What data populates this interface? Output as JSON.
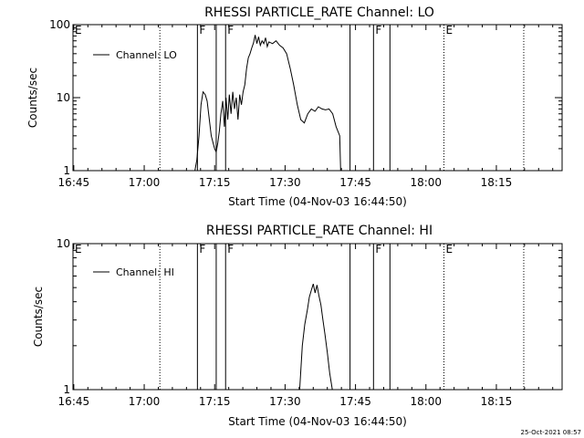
{
  "footer": {
    "timestamp": "25-Oct-2021 08:57"
  },
  "chart_data": [
    {
      "type": "line",
      "title": "RHESSI PARTICLE_RATE Channel: LO",
      "xlabel": "Start Time (04-Nov-03 16:44:50)",
      "ylabel": "Counts/sec",
      "y_scale": "log",
      "ylim": [
        1,
        100
      ],
      "y_ticks": [
        {
          "value": 1,
          "label": "1"
        },
        {
          "value": 10,
          "label": "10"
        },
        {
          "value": 100,
          "label": "100"
        }
      ],
      "xlim": [
        "16:44:50",
        "18:29:00"
      ],
      "x_ticks": [
        "16:45",
        "17:00",
        "17:15",
        "17:30",
        "17:45",
        "18:00",
        "18:15"
      ],
      "legend": {
        "position": "top-left",
        "entries": [
          "Channel: LO"
        ]
      },
      "series": [
        {
          "name": "Channel: LO",
          "x": [
            "17:10:48",
            "17:11:12",
            "17:11:40",
            "17:12:06",
            "17:12:32",
            "17:13:00",
            "17:13:24",
            "17:13:52",
            "17:14:16",
            "17:14:44",
            "17:15:00",
            "17:15:20",
            "17:15:40",
            "17:16:00",
            "17:16:20",
            "17:16:44",
            "17:17:04",
            "17:17:26",
            "17:17:48",
            "17:18:08",
            "17:18:30",
            "17:18:52",
            "17:19:14",
            "17:19:36",
            "17:19:58",
            "17:20:20",
            "17:20:42",
            "17:21:04",
            "17:21:26",
            "17:21:48",
            "17:22:10",
            "17:22:32",
            "17:22:54",
            "17:23:16",
            "17:23:38",
            "17:24:00",
            "17:24:22",
            "17:24:44",
            "17:25:06",
            "17:25:28",
            "17:25:50",
            "17:26:12",
            "17:26:34",
            "17:27:20",
            "17:28:04",
            "17:28:50",
            "17:29:34",
            "17:30:20",
            "17:31:06",
            "17:31:50",
            "17:32:36",
            "17:33:20",
            "17:34:06",
            "17:34:50",
            "17:35:36",
            "17:36:22",
            "17:37:06",
            "17:37:52",
            "17:38:36",
            "17:39:22",
            "17:40:08",
            "17:40:52",
            "17:41:38",
            "17:41:50"
          ],
          "values": [
            1,
            1.4,
            3,
            8,
            12,
            11,
            9,
            5,
            3,
            2.3,
            2.0,
            1.8,
            2.4,
            3.5,
            6,
            9,
            4,
            10,
            5,
            11,
            6,
            12,
            7,
            10,
            5,
            11,
            8,
            12,
            15,
            25,
            35,
            40,
            48,
            56,
            72,
            55,
            68,
            52,
            60,
            55,
            66,
            50,
            58,
            55,
            60,
            52,
            48,
            40,
            25,
            15,
            8,
            5,
            4.5,
            6,
            7,
            6.5,
            7.5,
            7,
            6.8,
            7,
            6,
            4,
            3,
            1
          ]
        }
      ],
      "vertical_markers": [
        {
          "time": "17:03:20",
          "style": "dotted",
          "label": ""
        },
        {
          "time": "17:11:20",
          "style": "solid",
          "label": "F"
        },
        {
          "time": "17:15:20",
          "style": "solid",
          "label": ""
        },
        {
          "time": "17:17:20",
          "style": "solid",
          "label": "F"
        },
        {
          "time": "17:43:50",
          "style": "solid",
          "label": ""
        },
        {
          "time": "17:48:50",
          "style": "solid",
          "label": "F"
        },
        {
          "time": "17:52:20",
          "style": "solid",
          "label": ""
        },
        {
          "time": "18:03:50",
          "style": "dotted",
          "label": "E"
        },
        {
          "time": "18:20:50",
          "style": "dotted",
          "label": ""
        },
        {
          "time": "16:44:50",
          "style": "none",
          "label": "E"
        }
      ]
    },
    {
      "type": "line",
      "title": "RHESSI PARTICLE_RATE Channel: HI",
      "xlabel": "Start Time (04-Nov-03 16:44:50)",
      "ylabel": "Counts/sec",
      "y_scale": "log",
      "ylim": [
        1,
        10
      ],
      "y_ticks": [
        {
          "value": 1,
          "label": "1"
        },
        {
          "value": 10,
          "label": "10"
        }
      ],
      "xlim": [
        "16:44:50",
        "18:29:00"
      ],
      "x_ticks": [
        "16:45",
        "17:00",
        "17:15",
        "17:30",
        "17:45",
        "18:00",
        "18:15"
      ],
      "legend": {
        "position": "top-left",
        "entries": [
          "Channel: HI"
        ]
      },
      "series": [
        {
          "name": "Channel: HI",
          "x": [
            "17:33:06",
            "17:33:40",
            "17:34:12",
            "17:34:44",
            "17:35:10",
            "17:35:36",
            "17:36:00",
            "17:36:24",
            "17:36:48",
            "17:37:12",
            "17:37:38",
            "17:38:04",
            "17:38:30",
            "17:39:00",
            "17:39:30",
            "17:40:04"
          ],
          "values": [
            1,
            2.0,
            2.8,
            3.5,
            4.3,
            4.8,
            5.3,
            4.6,
            5.2,
            4.4,
            3.8,
            3.0,
            2.4,
            1.8,
            1.3,
            1
          ]
        }
      ],
      "vertical_markers": [
        {
          "time": "17:03:20",
          "style": "dotted",
          "label": ""
        },
        {
          "time": "17:11:20",
          "style": "solid",
          "label": "F"
        },
        {
          "time": "17:15:20",
          "style": "solid",
          "label": ""
        },
        {
          "time": "17:17:20",
          "style": "solid",
          "label": "F"
        },
        {
          "time": "17:43:50",
          "style": "solid",
          "label": ""
        },
        {
          "time": "17:48:50",
          "style": "solid",
          "label": "F"
        },
        {
          "time": "17:52:20",
          "style": "solid",
          "label": ""
        },
        {
          "time": "18:03:50",
          "style": "dotted",
          "label": "E"
        },
        {
          "time": "18:20:50",
          "style": "dotted",
          "label": ""
        },
        {
          "time": "16:44:50",
          "style": "none",
          "label": "E"
        }
      ]
    }
  ]
}
